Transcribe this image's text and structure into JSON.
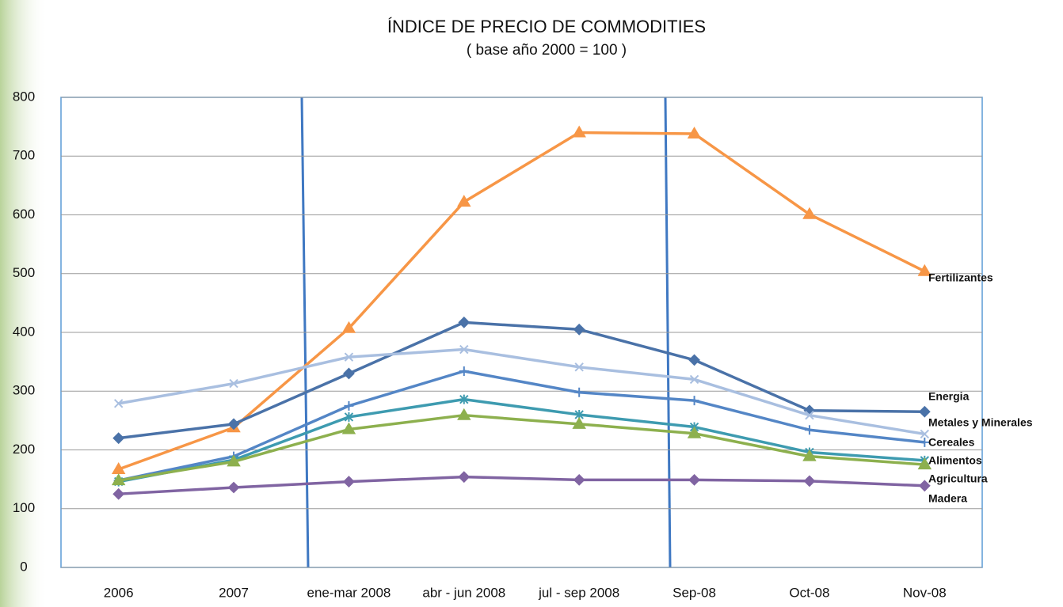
{
  "chart_data": {
    "type": "line",
    "title": "ÍNDICE DE PRECIO DE COMMODITIES",
    "subtitle": "( base año 2000 = 100 )",
    "categories": [
      "2006",
      "2007",
      "ene-mar 2008",
      "abr - jun 2008",
      "jul - sep 2008",
      "Sep-08",
      "Oct-08",
      "Nov-08"
    ],
    "ylim": [
      0,
      800
    ],
    "yticks": [
      0,
      100,
      200,
      300,
      400,
      500,
      600,
      700,
      800
    ],
    "grid": true,
    "series": [
      {
        "name": "Fertilizantes",
        "color": "#f79646",
        "marker": "triangle",
        "values": [
          167,
          238,
          407,
          622,
          740,
          738,
          601,
          504
        ]
      },
      {
        "name": "Energia",
        "color": "#4a72a8",
        "marker": "diamond",
        "values": [
          220,
          244,
          330,
          417,
          405,
          353,
          267,
          265
        ]
      },
      {
        "name": "Metales y Minerales",
        "color": "#a9bfe0",
        "marker": "x",
        "values": [
          279,
          313,
          358,
          371,
          341,
          320,
          259,
          227
        ]
      },
      {
        "name": "Cereales",
        "color": "#5486c6",
        "marker": "plus",
        "values": [
          148,
          189,
          275,
          334,
          298,
          284,
          234,
          213
        ]
      },
      {
        "name": "Alimentos",
        "color": "#3e9bb0",
        "marker": "star",
        "values": [
          146,
          183,
          256,
          286,
          260,
          239,
          196,
          182
        ]
      },
      {
        "name": "Agricultura",
        "color": "#8db04e",
        "marker": "triangle",
        "values": [
          148,
          180,
          235,
          259,
          244,
          228,
          189,
          175
        ]
      },
      {
        "name": "Madera",
        "color": "#8064a2",
        "marker": "diamond",
        "values": [
          125,
          136,
          146,
          154,
          149,
          149,
          147,
          139
        ]
      }
    ]
  }
}
